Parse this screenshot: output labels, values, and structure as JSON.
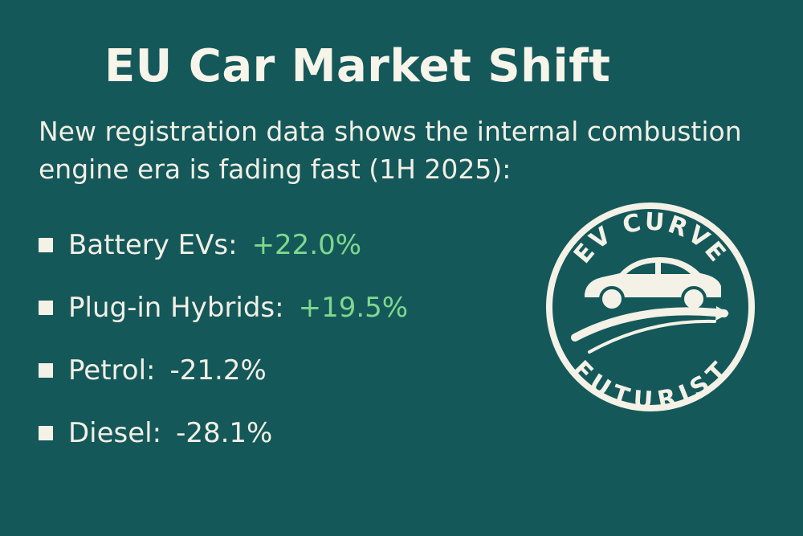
{
  "header": {
    "title": "EU Car Market Shift",
    "subtitle": "New registration data shows the internal combustion engine era is fading fast (1H 2025):"
  },
  "stats": [
    {
      "label": "Battery EVs:",
      "value": "+22.0%",
      "trend": "up",
      "color": "#7fd88d"
    },
    {
      "label": "Plug-in Hybrids:",
      "value": "+19.5%",
      "trend": "up",
      "color": "#7fd88d"
    },
    {
      "label": "Petrol:",
      "value": "-21.2%",
      "trend": "down",
      "color": "#f2efe4"
    },
    {
      "label": "Diesel:",
      "value": "-28.1%",
      "trend": "down",
      "color": "#f2efe4"
    }
  ],
  "badge": {
    "top_text": "EV CURVE",
    "bottom_text": "FUTURIST",
    "icon": "car-on-road-icon"
  },
  "colors": {
    "background": "#14585a",
    "text": "#f4f1e6",
    "positive": "#7fd88d"
  }
}
